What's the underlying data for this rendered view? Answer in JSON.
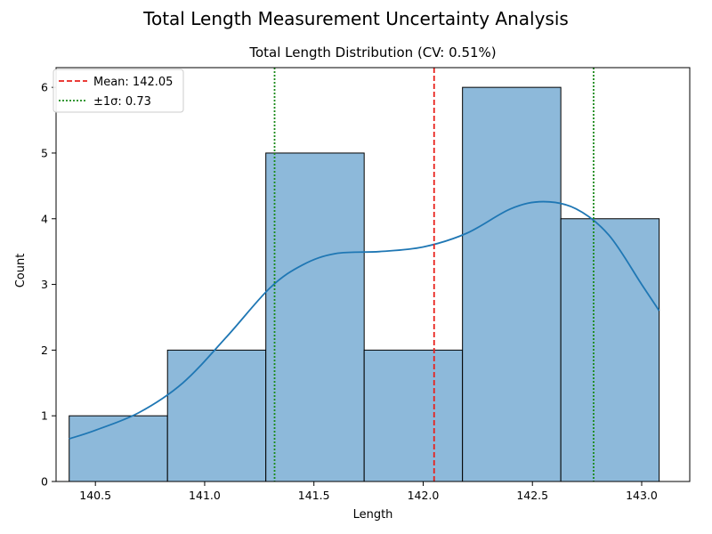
{
  "chart_data": {
    "type": "bar",
    "suptitle": "Total Length Measurement Uncertainty Analysis",
    "title": "Total Length Distribution (CV: 0.51%)",
    "xlabel": "Length",
    "ylabel": "Count",
    "xlim": [
      140.32,
      143.22
    ],
    "ylim": [
      0,
      6.3
    ],
    "xticks": [
      "140.5",
      "141.0",
      "141.5",
      "142.0",
      "142.5",
      "143.0"
    ],
    "yticks": [
      "0",
      "1",
      "2",
      "3",
      "4",
      "5",
      "6"
    ],
    "bin_edges": [
      140.38,
      140.83,
      141.28,
      141.73,
      142.18,
      142.63,
      143.08
    ],
    "counts": [
      1,
      2,
      5,
      2,
      6,
      4
    ],
    "kde": {
      "x": [
        140.38,
        140.5,
        140.7,
        140.9,
        141.1,
        141.3,
        141.45,
        141.6,
        141.8,
        142.0,
        142.2,
        142.4,
        142.55,
        142.7,
        142.85,
        143.0,
        143.08
      ],
      "y": [
        0.65,
        0.78,
        1.05,
        1.5,
        2.2,
        2.95,
        3.3,
        3.47,
        3.5,
        3.57,
        3.78,
        4.15,
        4.26,
        4.15,
        3.75,
        3.0,
        2.6
      ]
    },
    "mean_line": {
      "x": 142.05,
      "label": "Mean: 142.05",
      "color": "#e8211c"
    },
    "sigma_lines": {
      "x": [
        141.32,
        142.78
      ],
      "label": "±1σ: 0.73",
      "color": "#1a8a1a"
    },
    "legend": "top-left",
    "bar_color": "#8db9da",
    "kde_color": "#1f77b4"
  }
}
